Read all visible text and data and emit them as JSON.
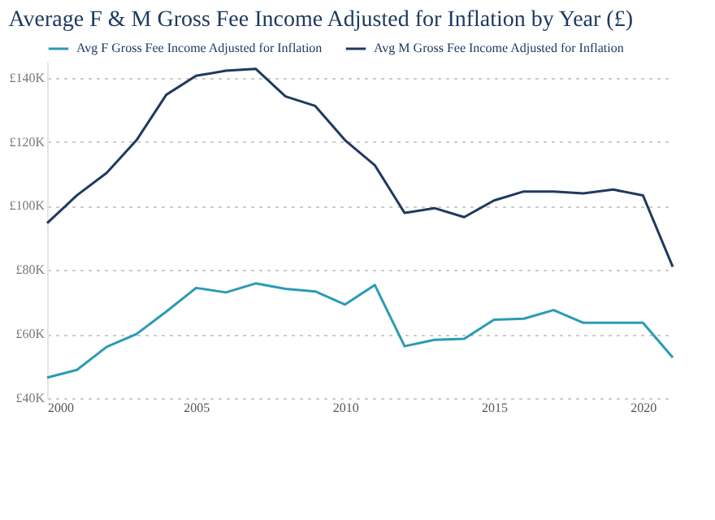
{
  "chart_data": {
    "type": "line",
    "title": "Average F & M Gross Fee Income Adjusted for Inflation by Year (£)",
    "x": [
      2000,
      2001,
      2002,
      2003,
      2004,
      2005,
      2006,
      2007,
      2008,
      2009,
      2010,
      2011,
      2012,
      2013,
      2014,
      2015,
      2016,
      2017,
      2018,
      2019,
      2020,
      2021
    ],
    "series": [
      {
        "name": "Avg F Gross Fee Income Adjusted for Inflation",
        "color": "#2a9bb5",
        "values": [
          46.4,
          48.8,
          56,
          60,
          67,
          74.4,
          73,
          75.8,
          74.1,
          73.3,
          69.2,
          75.3,
          56.2,
          58.2,
          58.5,
          64.5,
          64.8,
          67.5,
          63.5,
          63.5,
          63.5,
          52.7
        ]
      },
      {
        "name": "Avg M Gross Fee Income Adjusted for Inflation",
        "color": "#1f3a60",
        "values": [
          94.6,
          103.3,
          110.3,
          120.5,
          134.7,
          140.6,
          142.2,
          142.8,
          134.2,
          131.2,
          120.5,
          112.7,
          97.8,
          99.3,
          96.5,
          101.7,
          104.5,
          104.5,
          103.9,
          105.1,
          103.3,
          81
        ]
      }
    ],
    "xlim": [
      2000,
      2021
    ],
    "xticks": [
      2000,
      2005,
      2010,
      2015,
      2020
    ],
    "ylim": [
      40,
      145
    ],
    "yticks": [
      {
        "value": 40,
        "label": "£40K"
      },
      {
        "value": 60,
        "label": "£60K"
      },
      {
        "value": 80,
        "label": "£80K"
      },
      {
        "value": 100,
        "label": "£100K"
      },
      {
        "value": 120,
        "label": "£120K"
      },
      {
        "value": 140,
        "label": "£140K"
      }
    ],
    "grid": "y",
    "legend": "top left",
    "marker": "none",
    "line_style": "solid"
  }
}
